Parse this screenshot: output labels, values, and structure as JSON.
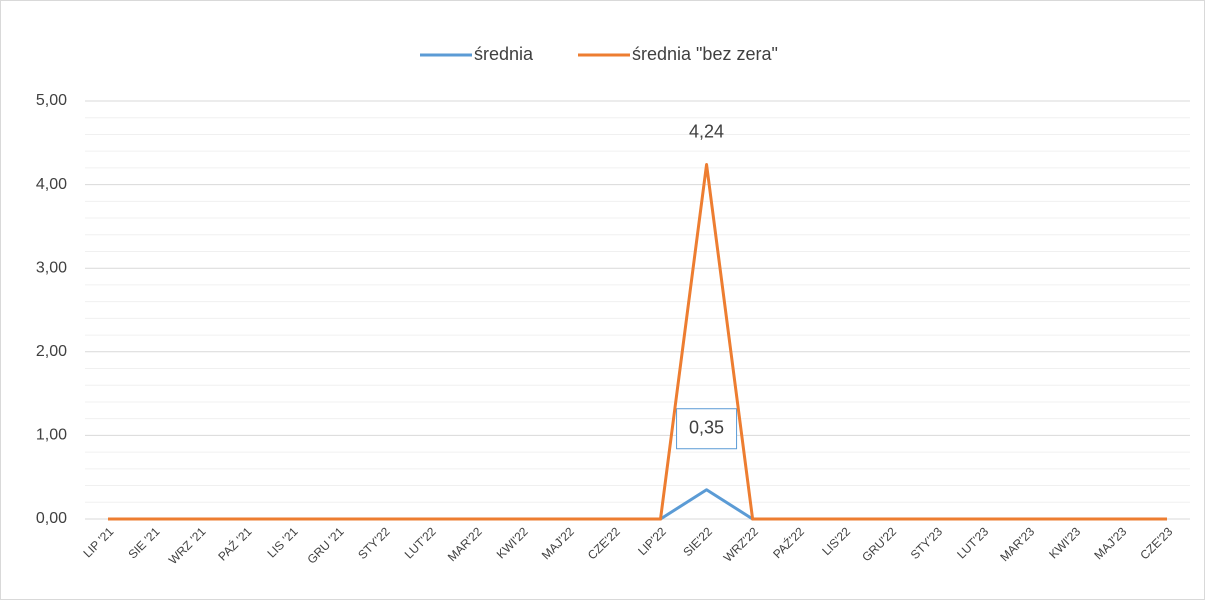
{
  "chart_data": {
    "type": "line",
    "categories": [
      "LIP '21",
      "SIE '21",
      "WRZ '21",
      "PAŹ '21",
      "LIS '21",
      "GRU '21",
      "STY'22",
      "LUT'22",
      "MAR'22",
      "KWI'22",
      "MAJ'22",
      "CZE'22",
      "LIP'22",
      "SIE'22",
      "WRZ'22",
      "PAŹ'22",
      "LIS'22",
      "GRU'22",
      "STY'23",
      "LUT'23",
      "MAR'23",
      "KWI'23",
      "MAJ'23",
      "CZE'23"
    ],
    "series": [
      {
        "name": "średnia",
        "color": "#5b9bd5",
        "values": [
          0,
          0,
          0,
          0,
          0,
          0,
          0,
          0,
          0,
          0,
          0,
          0,
          0,
          0.35,
          0,
          0,
          0,
          0,
          0,
          0,
          0,
          0,
          0,
          0
        ],
        "value_labels": [
          null,
          null,
          null,
          null,
          null,
          null,
          null,
          null,
          null,
          null,
          null,
          null,
          null,
          "0,35",
          null,
          null,
          null,
          null,
          null,
          null,
          null,
          null,
          null,
          null
        ]
      },
      {
        "name": "średnia \"bez zera\"",
        "color": "#ed7d31",
        "values": [
          0,
          0,
          0,
          0,
          0,
          0,
          0,
          0,
          0,
          0,
          0,
          0,
          0,
          4.24,
          0,
          0,
          0,
          0,
          0,
          0,
          0,
          0,
          0,
          0
        ],
        "value_labels": [
          null,
          null,
          null,
          null,
          null,
          null,
          null,
          null,
          null,
          null,
          null,
          null,
          null,
          "4,24",
          null,
          null,
          null,
          null,
          null,
          null,
          null,
          null,
          null,
          null
        ]
      }
    ],
    "ylim": [
      0,
      5
    ],
    "yticks": [
      {
        "value": 0,
        "label": "0,00"
      },
      {
        "value": 1,
        "label": "1,00"
      },
      {
        "value": 2,
        "label": "2,00"
      },
      {
        "value": 3,
        "label": "3,00"
      },
      {
        "value": 4,
        "label": "4,00"
      },
      {
        "value": 5,
        "label": "5,00"
      }
    ],
    "minor_yticks": [
      0.2,
      0.4,
      0.6,
      0.8,
      1.2,
      1.4,
      1.6,
      1.8,
      2.2,
      2.4,
      2.6,
      2.8,
      3.2,
      3.4,
      3.6,
      3.8,
      4.2,
      4.4,
      4.6,
      4.8
    ],
    "grid": true,
    "legend": "top"
  }
}
